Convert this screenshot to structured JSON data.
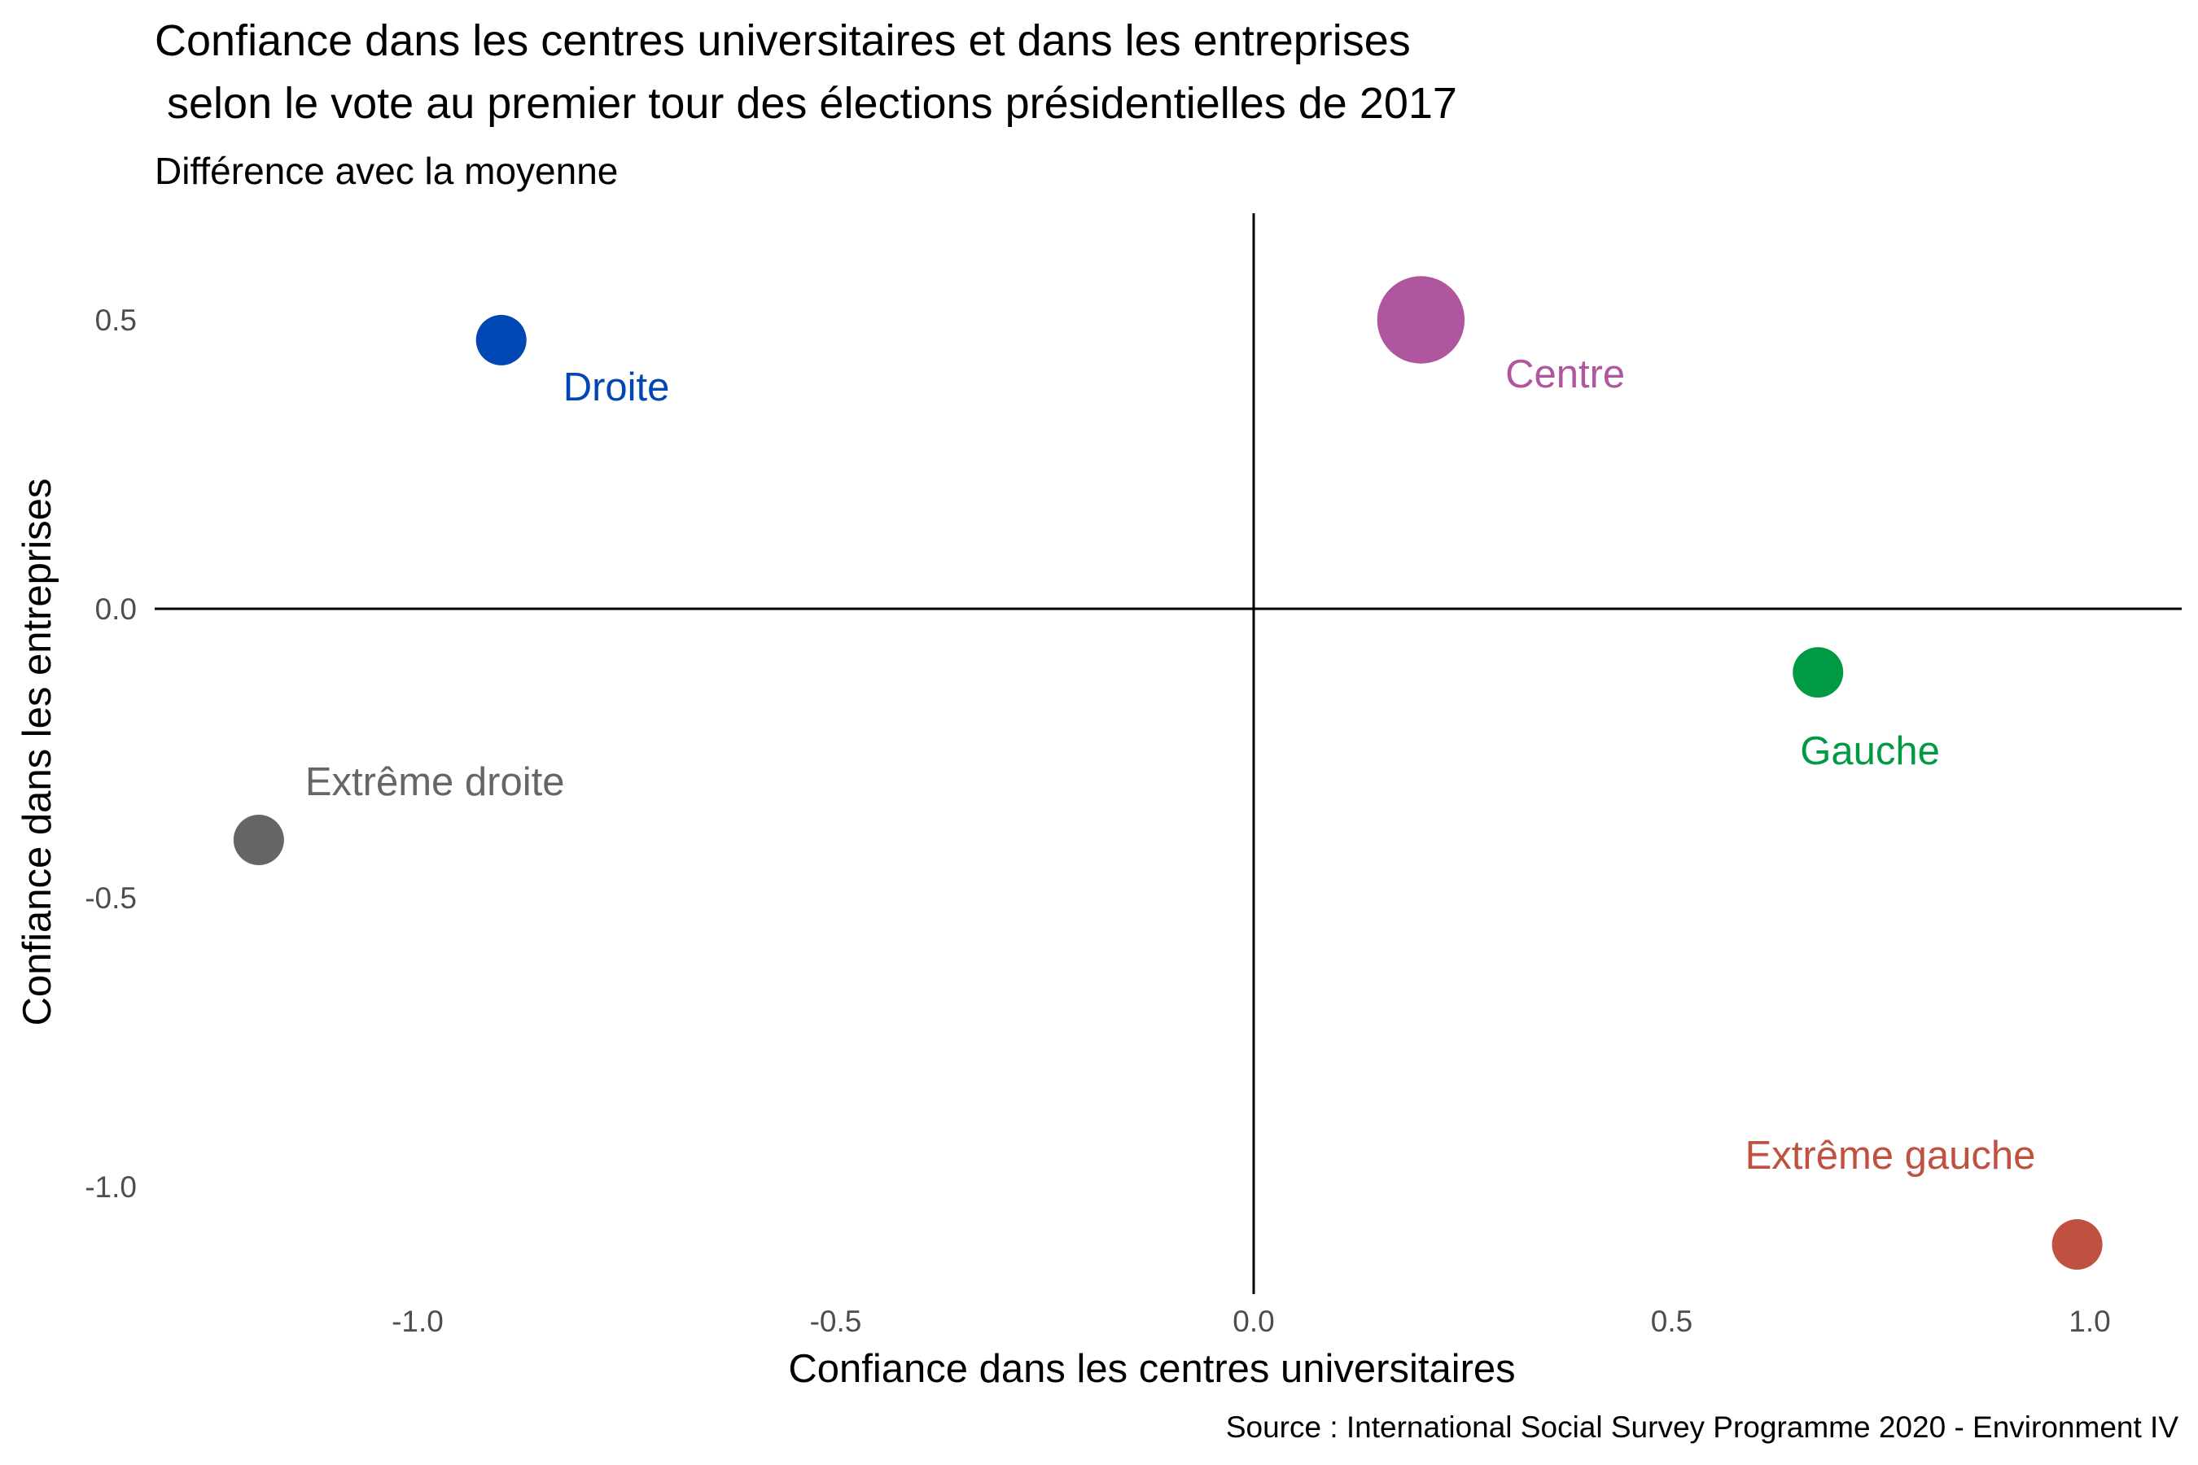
{
  "chart_data": {
    "type": "scatter",
    "title": [
      "Confiance dans les centres universitaires et dans les entreprises",
      " selon le vote au premier tour des élections présidentielles de 2017"
    ],
    "subtitle": "Différence avec la moyenne",
    "xlabel": "Confiance dans les centres universitaires",
    "ylabel": "Confiance dans les entreprises",
    "caption": "Source : International Social Survey Programme 2020 - Environment IV",
    "xlim": [
      -1.3,
      1.1
    ],
    "ylim": [
      -1.2,
      0.68
    ],
    "x_ticks": [
      -1.0,
      -0.5,
      0.0,
      0.5,
      1.0
    ],
    "x_tick_labels": [
      "-1.0",
      "-0.5",
      "0.0",
      "0.5",
      "1.0"
    ],
    "y_ticks": [
      0.5,
      0.0,
      -0.5,
      -1.0
    ],
    "y_tick_labels": [
      "0.5",
      "0.0",
      "-0.5",
      "-1.0"
    ],
    "grid": false,
    "reference_lines": {
      "x": 0,
      "y": 0
    },
    "points": [
      {
        "label": "Droite",
        "x": -0.9,
        "y": 0.465,
        "size": 1,
        "color": "#0047b3",
        "label_position": "below-right"
      },
      {
        "label": "Centre",
        "x": 0.2,
        "y": 0.5,
        "size": 3,
        "color": "#b0569e",
        "label_position": "below-right"
      },
      {
        "label": "Gauche",
        "x": 0.675,
        "y": -0.11,
        "size": 1,
        "color": "#009a44",
        "label_position": "below-right"
      },
      {
        "label": "Extrême droite",
        "x": -1.19,
        "y": -0.4,
        "size": 1,
        "color": "#666666",
        "label_position": "above-right"
      },
      {
        "label": "Extrême gauche",
        "x": 0.985,
        "y": -1.1,
        "size": 1,
        "color": "#c05040",
        "label_position": "above-left"
      }
    ]
  }
}
